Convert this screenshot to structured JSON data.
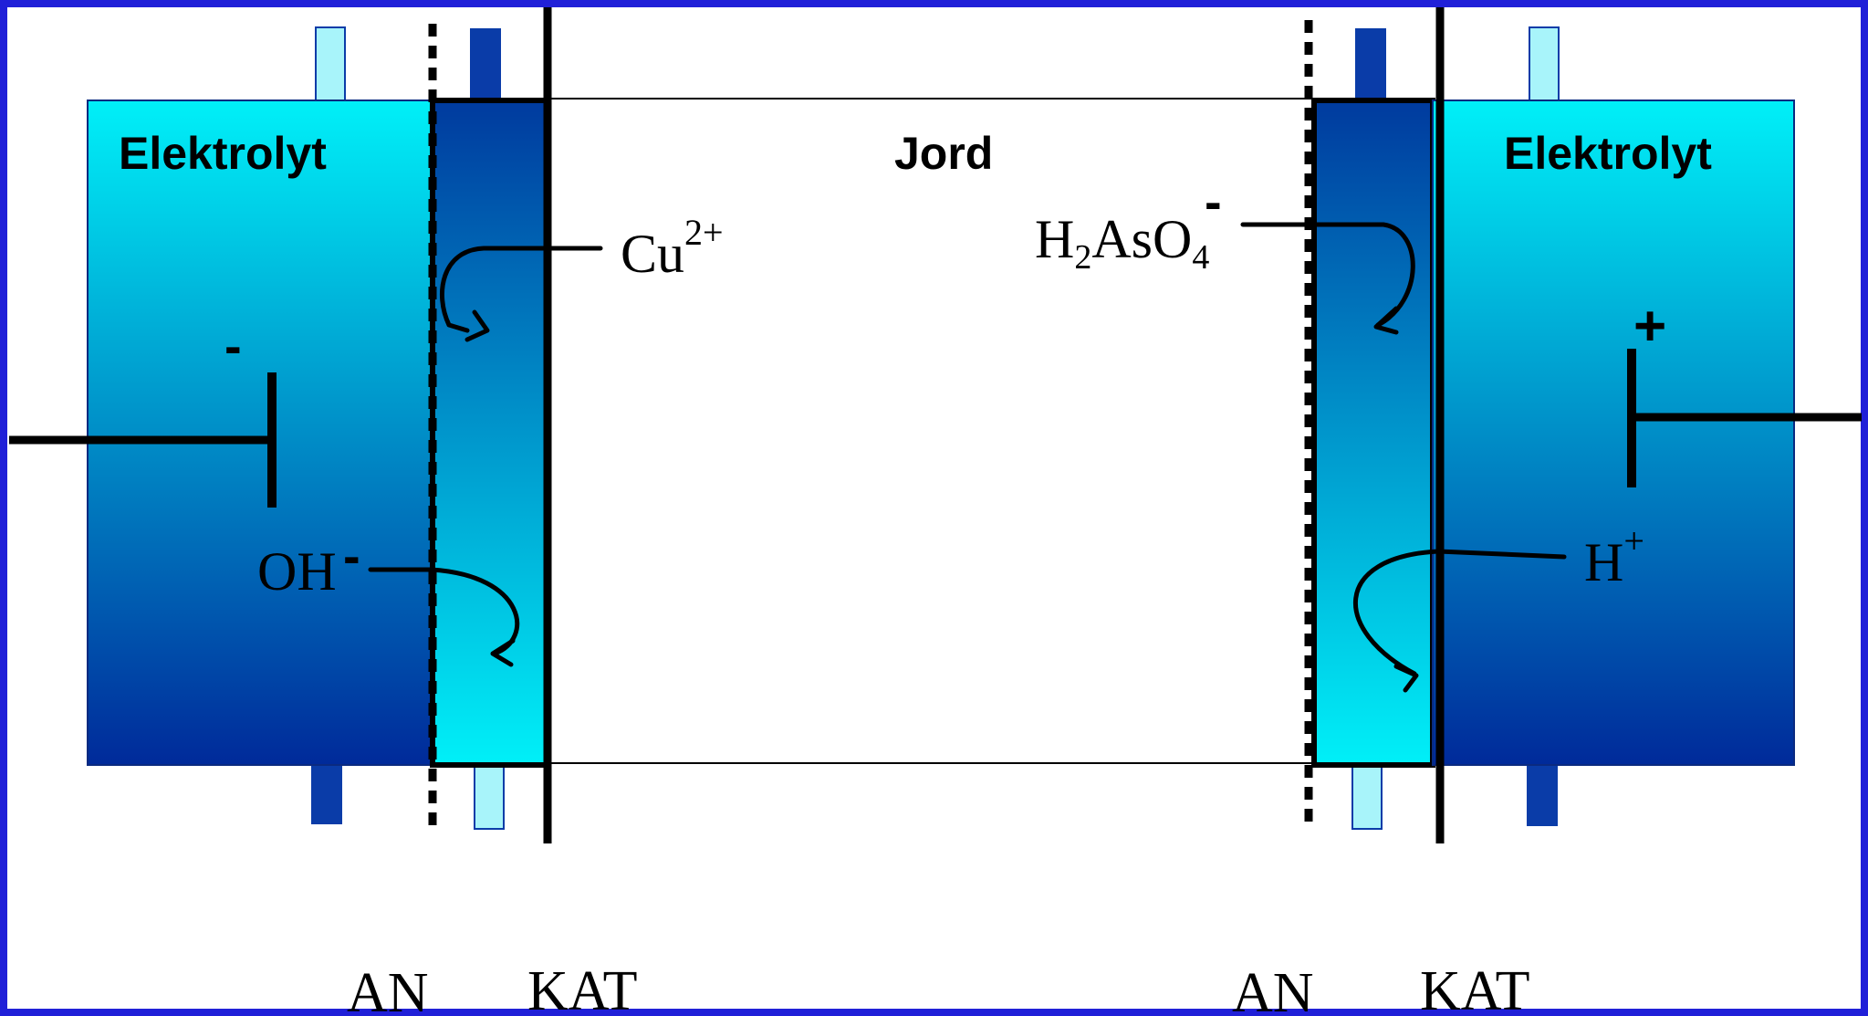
{
  "labels": {
    "left_chamber": "Elektrolyt",
    "right_chamber": "Elektrolyt",
    "soil": "Jord",
    "minus": "-",
    "plus": "+"
  },
  "ions": {
    "cu": {
      "base": "Cu",
      "sup": "2+"
    },
    "arsenate": {
      "h": "H",
      "sub1": "2",
      "aso": "AsO",
      "sub2": "4",
      "sup": "-"
    },
    "hydroxide": {
      "base": "OH",
      "sup": "-"
    },
    "proton": {
      "base": "H",
      "sup": "+"
    }
  },
  "membranes": {
    "left_an": "AN",
    "left_kat": "KAT",
    "right_an": "AN",
    "right_kat": "KAT"
  },
  "colors": {
    "border": "#2020d8",
    "deep_blue": "#002a9a",
    "cyan": "#00f0f8",
    "tube_light": "#a8f4fa",
    "tube_dark": "#0a3ca8",
    "line": "#000000"
  }
}
